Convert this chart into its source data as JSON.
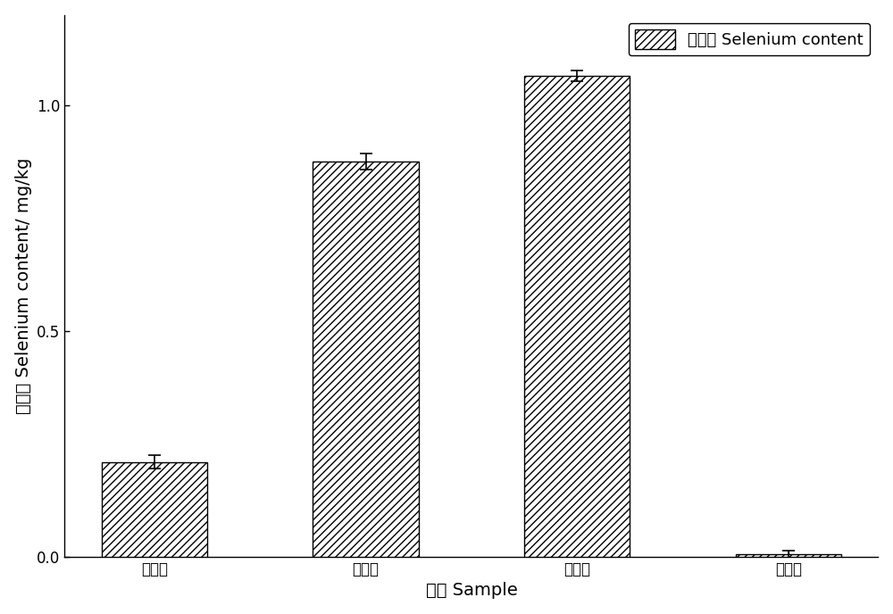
{
  "categories": [
    "花生壳",
    "花生衣",
    "脱脂粉",
    "花生油"
  ],
  "values": [
    0.21,
    0.875,
    1.065,
    0.005
  ],
  "errors": [
    0.015,
    0.018,
    0.012,
    0.008
  ],
  "ylabel": "硒含量 Selenium content/ mg/kg",
  "xlabel": "样品 Sample",
  "legend_label": "硒含量 Selenium content",
  "ylim": [
    0,
    1.2
  ],
  "yticks": [
    0.0,
    0.5,
    1.0
  ],
  "bar_color": "white",
  "bar_edgecolor": "black",
  "hatch": "////",
  "background_color": "white",
  "figsize": [
    10.0,
    6.88
  ],
  "dpi": 100
}
